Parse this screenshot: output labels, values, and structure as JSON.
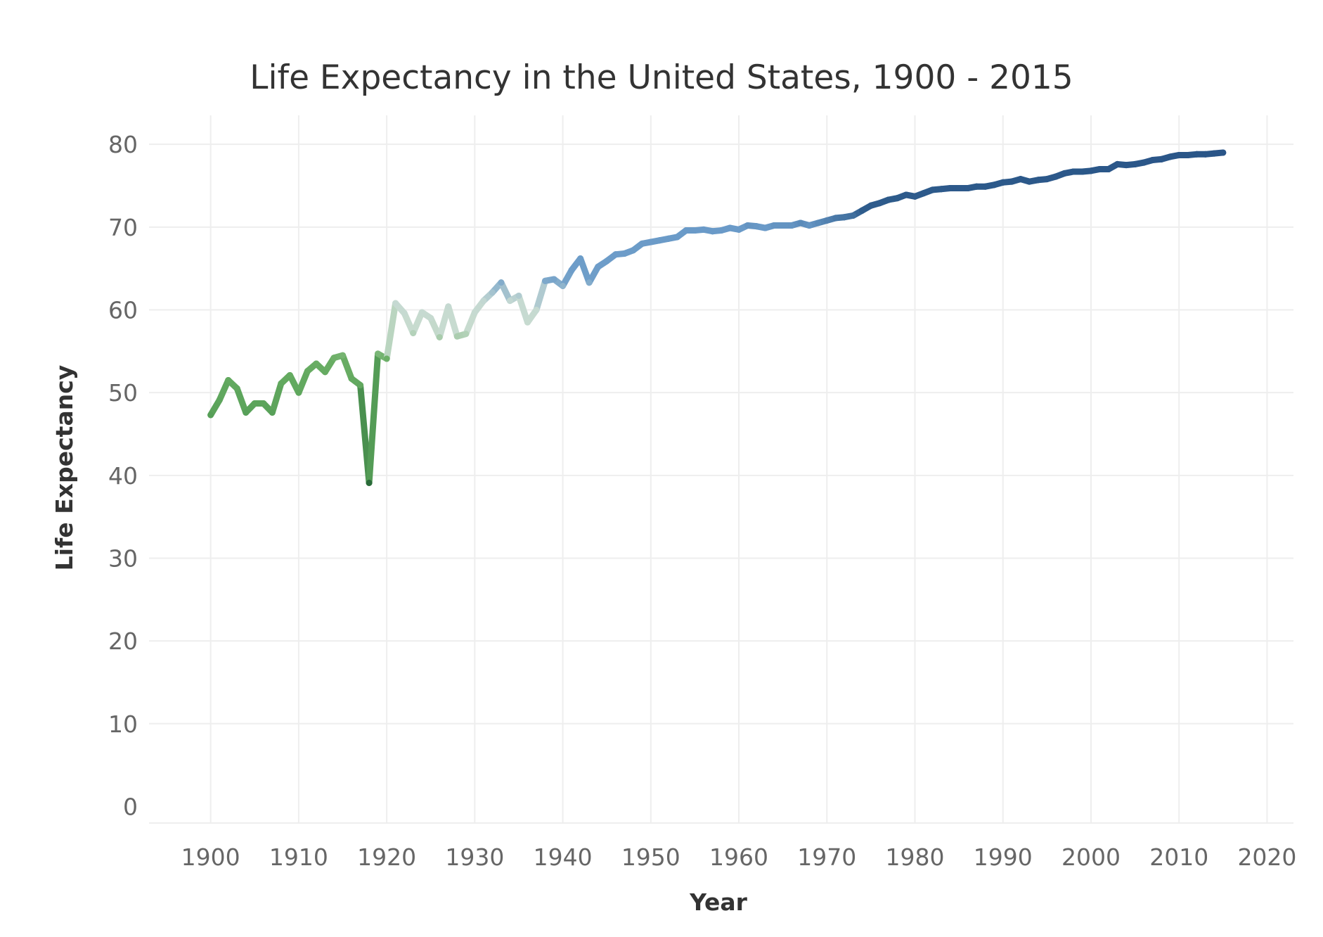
{
  "chart_data": {
    "type": "line",
    "title": "Life Expectancy in the United States, 1900 - 2015",
    "xlabel": "Year",
    "ylabel": "Life Expectancy",
    "xlim": [
      1893,
      2023
    ],
    "ylim": [
      -2,
      83.5
    ],
    "x_ticks": [
      1900,
      1910,
      1920,
      1930,
      1940,
      1950,
      1960,
      1970,
      1980,
      1990,
      2000,
      2010,
      2020
    ],
    "y_ticks": [
      0,
      10,
      20,
      30,
      40,
      50,
      60,
      70,
      80
    ],
    "grid": true,
    "legend": "none",
    "color_scale": {
      "stops": [
        {
          "value": 39.1,
          "color": "#2a6b3a"
        },
        {
          "value": 48,
          "color": "#5aa35a"
        },
        {
          "value": 54,
          "color": "#6aae64"
        },
        {
          "value": 58,
          "color": "#c7dbcf"
        },
        {
          "value": 61,
          "color": "#c5d9d2"
        },
        {
          "value": 64,
          "color": "#6f9ec9"
        },
        {
          "value": 70,
          "color": "#6a9ac8"
        },
        {
          "value": 72,
          "color": "#2e5c8c"
        },
        {
          "value": 79.4,
          "color": "#2a5588"
        }
      ]
    },
    "series": [
      {
        "x": [
          1900,
          1901,
          1902,
          1903,
          1904,
          1905,
          1906,
          1907,
          1908,
          1909,
          1910,
          1911,
          1912,
          1913,
          1914,
          1915,
          1916,
          1917,
          1918,
          1919,
          1920,
          1921,
          1922,
          1923,
          1924,
          1925,
          1926,
          1927,
          1928,
          1929,
          1930,
          1931,
          1932,
          1933,
          1934,
          1935,
          1936,
          1937,
          1938,
          1939,
          1940,
          1941,
          1942,
          1943,
          1944,
          1945,
          1946,
          1947,
          1948,
          1949,
          1950,
          1951,
          1952,
          1953,
          1954,
          1955,
          1956,
          1957,
          1958,
          1959,
          1960,
          1961,
          1962,
          1963,
          1964,
          1965,
          1966,
          1967,
          1968,
          1969,
          1970,
          1971,
          1972,
          1973,
          1974,
          1975,
          1976,
          1977,
          1978,
          1979,
          1980,
          1981,
          1982,
          1983,
          1984,
          1985,
          1986,
          1987,
          1988,
          1989,
          1990,
          1991,
          1992,
          1993,
          1994,
          1995,
          1996,
          1997,
          1998,
          1999,
          2000,
          2001,
          2002,
          2003,
          2004,
          2005,
          2006,
          2007,
          2008,
          2009,
          2010,
          2011,
          2012,
          2013,
          2014,
          2015
        ],
        "values": [
          47.3,
          49.1,
          51.5,
          50.5,
          47.6,
          48.7,
          48.7,
          47.6,
          51.1,
          52.1,
          50.0,
          52.6,
          53.5,
          52.5,
          54.2,
          54.5,
          51.7,
          50.9,
          39.1,
          54.7,
          54.1,
          60.8,
          59.6,
          57.2,
          59.7,
          59.0,
          56.7,
          60.4,
          56.8,
          57.1,
          59.7,
          61.1,
          62.1,
          63.3,
          61.1,
          61.7,
          58.5,
          60.0,
          63.5,
          63.7,
          62.9,
          64.8,
          66.2,
          63.3,
          65.2,
          65.9,
          66.7,
          66.8,
          67.2,
          68.0,
          68.2,
          68.4,
          68.6,
          68.8,
          69.6,
          69.6,
          69.7,
          69.5,
          69.6,
          69.9,
          69.7,
          70.2,
          70.1,
          69.9,
          70.2,
          70.2,
          70.2,
          70.5,
          70.2,
          70.5,
          70.8,
          71.1,
          71.2,
          71.4,
          72.0,
          72.6,
          72.9,
          73.3,
          73.5,
          73.9,
          73.7,
          74.1,
          74.5,
          74.6,
          74.7,
          74.7,
          74.7,
          74.9,
          74.9,
          75.1,
          75.4,
          75.5,
          75.8,
          75.5,
          75.7,
          75.8,
          76.1,
          76.5,
          76.7,
          76.7,
          76.8,
          77.0,
          77.0,
          77.6,
          77.5,
          77.6,
          77.8,
          78.1,
          78.2,
          78.5,
          78.7,
          78.7,
          78.8,
          78.8,
          78.9,
          79.0
        ]
      }
    ]
  }
}
